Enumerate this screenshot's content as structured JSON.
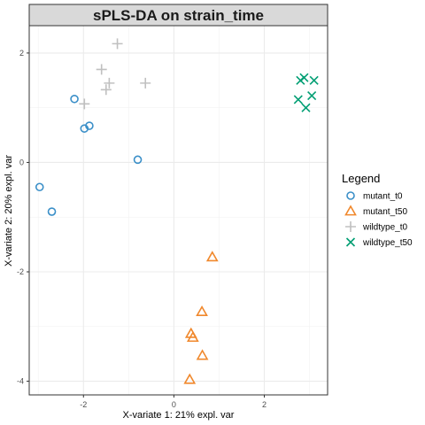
{
  "chart_data": {
    "type": "scatter",
    "title": "sPLS-DA on strain_time",
    "xlabel": "X-variate 1: 21% expl. var",
    "ylabel": "X-variate 2: 20% expl. var",
    "xlim": [
      -3.2,
      3.4
    ],
    "ylim": [
      -4.25,
      2.5
    ],
    "xticks": [
      -2,
      0,
      2
    ],
    "yticks": [
      -4,
      -2,
      0,
      2
    ],
    "grid": true,
    "legend": {
      "title": "Legend",
      "placement": "right"
    },
    "series": [
      {
        "name": "mutant_t0",
        "marker": "circle",
        "color": "#3A8FC8",
        "points": [
          [
            -2.2,
            1.16
          ],
          [
            -1.87,
            0.67
          ],
          [
            -1.98,
            0.62
          ],
          [
            -0.8,
            0.05
          ],
          [
            -2.97,
            -0.45
          ],
          [
            -2.7,
            -0.9
          ]
        ]
      },
      {
        "name": "mutant_t50",
        "marker": "triangle",
        "color": "#F0882C",
        "points": [
          [
            0.85,
            -1.73
          ],
          [
            0.62,
            -2.73
          ],
          [
            0.38,
            -3.13
          ],
          [
            0.42,
            -3.2
          ],
          [
            0.63,
            -3.53
          ],
          [
            0.35,
            -3.97
          ]
        ]
      },
      {
        "name": "wildtype_t0",
        "marker": "plus",
        "color": "#C0C0C0",
        "points": [
          [
            -1.25,
            2.17
          ],
          [
            -1.6,
            1.7
          ],
          [
            -1.43,
            1.45
          ],
          [
            -1.5,
            1.33
          ],
          [
            -0.63,
            1.45
          ],
          [
            -1.98,
            1.07
          ]
        ]
      },
      {
        "name": "wildtype_t50",
        "marker": "cross",
        "color": "#009E73",
        "points": [
          [
            2.8,
            1.5
          ],
          [
            2.88,
            1.55
          ],
          [
            3.1,
            1.5
          ],
          [
            3.05,
            1.22
          ],
          [
            2.75,
            1.15
          ],
          [
            2.92,
            1.0
          ]
        ]
      }
    ]
  }
}
